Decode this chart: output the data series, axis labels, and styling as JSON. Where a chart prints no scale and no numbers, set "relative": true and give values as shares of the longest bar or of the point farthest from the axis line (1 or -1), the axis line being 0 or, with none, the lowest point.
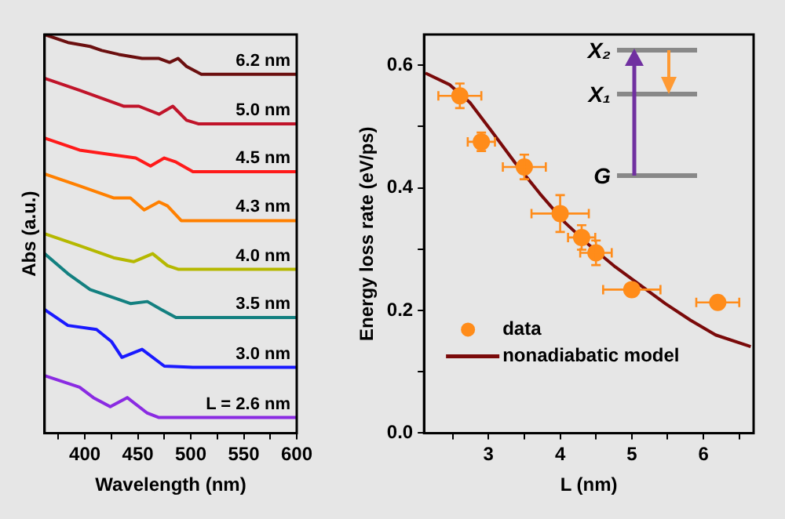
{
  "chart_data": [
    {
      "type": "line",
      "relative": true,
      "xlabel": "Wavelength (nm)",
      "ylabel": "Abs (a.u.)",
      "xlim": [
        362,
        600
      ],
      "xticks": [
        {
          "value": 375,
          "label": null
        },
        400,
        {
          "value": 425,
          "label": null
        },
        450,
        {
          "value": 475,
          "label": null
        },
        500,
        {
          "value": 525,
          "label": null
        },
        550,
        {
          "value": 575,
          "label": null
        },
        600
      ],
      "legend": false,
      "series": [
        {
          "name": "6.2 nm",
          "color": "#6b0f0f",
          "x": [
            362,
            384,
            405,
            416,
            432,
            454,
            470,
            480,
            488,
            496,
            510,
            600
          ],
          "values": [
            1.0,
            0.98,
            0.97,
            0.96,
            0.95,
            0.94,
            0.94,
            0.93,
            0.94,
            0.92,
            0.9,
            0.9
          ]
        },
        {
          "name": "5.0 nm",
          "color": "#c0142a",
          "x": [
            362,
            395,
            416,
            437,
            451,
            470,
            483,
            496,
            507,
            600
          ],
          "values": [
            0.89,
            0.86,
            0.84,
            0.82,
            0.82,
            0.8,
            0.82,
            0.785,
            0.776,
            0.776
          ]
        },
        {
          "name": "4.5 nm",
          "color": "#ff1a1a",
          "x": [
            362,
            395,
            421,
            448,
            462,
            475,
            486,
            502,
            600
          ],
          "values": [
            0.74,
            0.71,
            0.7,
            0.69,
            0.67,
            0.69,
            0.68,
            0.656,
            0.656
          ]
        },
        {
          "name": "4.3 nm",
          "color": "#ff8000",
          "x": [
            362,
            395,
            427,
            443,
            456,
            470,
            478,
            491,
            600
          ],
          "values": [
            0.65,
            0.62,
            0.59,
            0.59,
            0.56,
            0.58,
            0.57,
            0.533,
            0.533
          ]
        },
        {
          "name": "4.0 nm",
          "color": "#b5b800",
          "x": [
            362,
            395,
            427,
            446,
            464,
            478,
            488,
            600
          ],
          "values": [
            0.5,
            0.47,
            0.44,
            0.43,
            0.45,
            0.42,
            0.411,
            0.411
          ]
        },
        {
          "name": "3.5 nm",
          "color": "#138080",
          "x": [
            362,
            384,
            405,
            427,
            443,
            459,
            472,
            486,
            600
          ],
          "values": [
            0.45,
            0.4,
            0.36,
            0.34,
            0.325,
            0.33,
            0.31,
            0.29,
            0.29
          ]
        },
        {
          "name": "3.0 nm",
          "color": "#1a1aff",
          "x": [
            362,
            384,
            411,
            425,
            435,
            454,
            475,
            502,
            600
          ],
          "values": [
            0.31,
            0.27,
            0.26,
            0.23,
            0.19,
            0.21,
            0.168,
            0.165,
            0.165
          ]
        },
        {
          "name": "L = 2.6 nm",
          "color": "#8a2be2",
          "x": [
            362,
            395,
            408,
            424,
            440,
            459,
            470,
            600
          ],
          "values": [
            0.144,
            0.115,
            0.089,
            0.066,
            0.089,
            0.05,
            0.039,
            0.039
          ]
        }
      ]
    },
    {
      "type": "scatter",
      "xlabel": "L (nm)",
      "ylabel": "Energy loss rate (eV/ps)",
      "xlim": [
        2.1,
        6.7
      ],
      "ylim": [
        0,
        0.65
      ],
      "xticks": [
        {
          "value": 2.5,
          "label": null
        },
        3,
        {
          "value": 3.5,
          "label": null
        },
        4,
        {
          "value": 4.5,
          "label": null
        },
        5,
        {
          "value": 5.5,
          "label": null
        },
        6,
        {
          "value": 6.5,
          "label": null
        }
      ],
      "yticks": [
        {
          "value": 0,
          "label": "0.0"
        },
        {
          "value": 0.1,
          "label": null
        },
        {
          "value": 0.2,
          "label": "0.2"
        },
        {
          "value": 0.3,
          "label": null
        },
        {
          "value": 0.4,
          "label": "0.4"
        },
        {
          "value": 0.5,
          "label": null
        },
        {
          "value": 0.6,
          "label": "0.6"
        }
      ],
      "legend": "bottom left",
      "annotations": [
        "X₂",
        "X₁",
        "G"
      ],
      "series": [
        {
          "name": "data",
          "type": "scatter",
          "marker": "circle",
          "color": "#ff8c1a",
          "x": [
            2.6,
            2.9,
            3.5,
            4.0,
            4.3,
            4.5,
            5.0,
            6.2
          ],
          "values": [
            0.55,
            0.475,
            0.434,
            0.358,
            0.319,
            0.294,
            0.234,
            0.213
          ],
          "errors": [
            0.02,
            0.015,
            0.02,
            0.03,
            0.02,
            0.02,
            null,
            null
          ],
          "xerrors": [
            0.3,
            0.19,
            0.3,
            0.4,
            0.19,
            0.22,
            0.4,
            0.3
          ]
        },
        {
          "name": "nonadiabatic model",
          "type": "line",
          "color": "#7a0a0a",
          "x": [
            2.12,
            2.46,
            2.74,
            3.02,
            3.37,
            3.72,
            4.07,
            4.42,
            4.77,
            5.12,
            5.47,
            5.82,
            6.17,
            6.66
          ],
          "values": [
            0.587,
            0.568,
            0.539,
            0.496,
            0.441,
            0.39,
            0.343,
            0.305,
            0.271,
            0.241,
            0.211,
            0.184,
            0.16,
            0.141
          ]
        }
      ]
    }
  ]
}
